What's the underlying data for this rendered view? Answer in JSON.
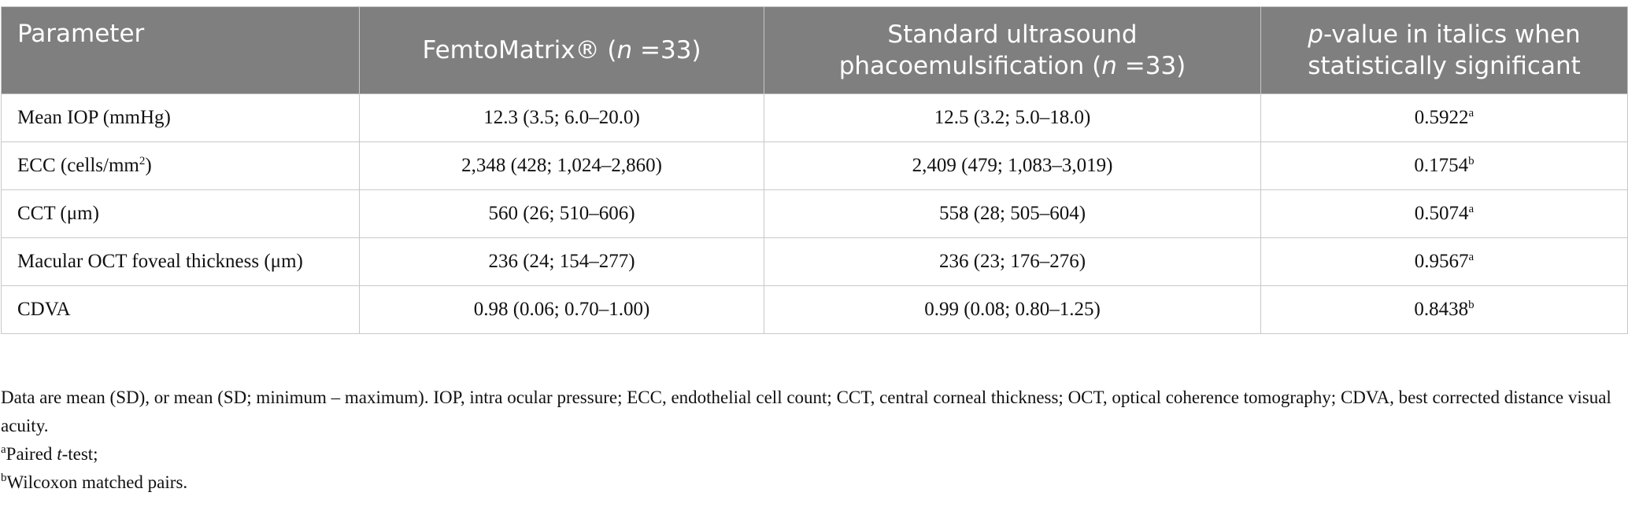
{
  "table": {
    "header": [
      [
        "Parameter"
      ],
      [
        "FemtoMatrix® (",
        "n",
        " =33)"
      ],
      [
        "Standard ultrasound phacoemulsification (",
        "n",
        " =33)"
      ],
      [
        "p",
        "-value in italics when statistically significant"
      ]
    ],
    "rows": [
      [
        "Mean IOP (mmHg)",
        "12.3 (3.5; 6.0–20.0)",
        "12.5 (3.2; 5.0–18.0)",
        [
          "0.5922",
          "a"
        ]
      ],
      [
        [
          "ECC (cells/mm",
          "2",
          ")"
        ],
        "2,348 (428; 1,024–2,860)",
        "2,409 (479; 1,083–3,019)",
        [
          "0.1754",
          "b"
        ]
      ],
      [
        "CCT (μm)",
        "560 (26; 510–606)",
        "558 (28; 505–604)",
        [
          "0.5074",
          "a"
        ]
      ],
      [
        "Macular OCT foveal thickness (μm)",
        "236 (24; 154–277)",
        "236 (23; 176–276)",
        [
          "0.9567",
          "a"
        ]
      ],
      [
        "CDVA",
        "0.98 (0.06; 0.70–1.00)",
        "0.99 (0.08; 0.80–1.25)",
        [
          "0.8438",
          "b"
        ]
      ]
    ]
  },
  "footnotes": {
    "general": "Data are mean (SD), or mean (SD; minimum – maximum). IOP, intra ocular pressure; ECC, endothelial cell count; CCT, central corneal thickness; OCT, optical coherence tomography; CDVA, best corrected distance visual acuity.",
    "a": [
      "a",
      "Paired ",
      "t",
      "-test;"
    ],
    "b": [
      "b",
      "Wilcoxon matched pairs."
    ]
  }
}
